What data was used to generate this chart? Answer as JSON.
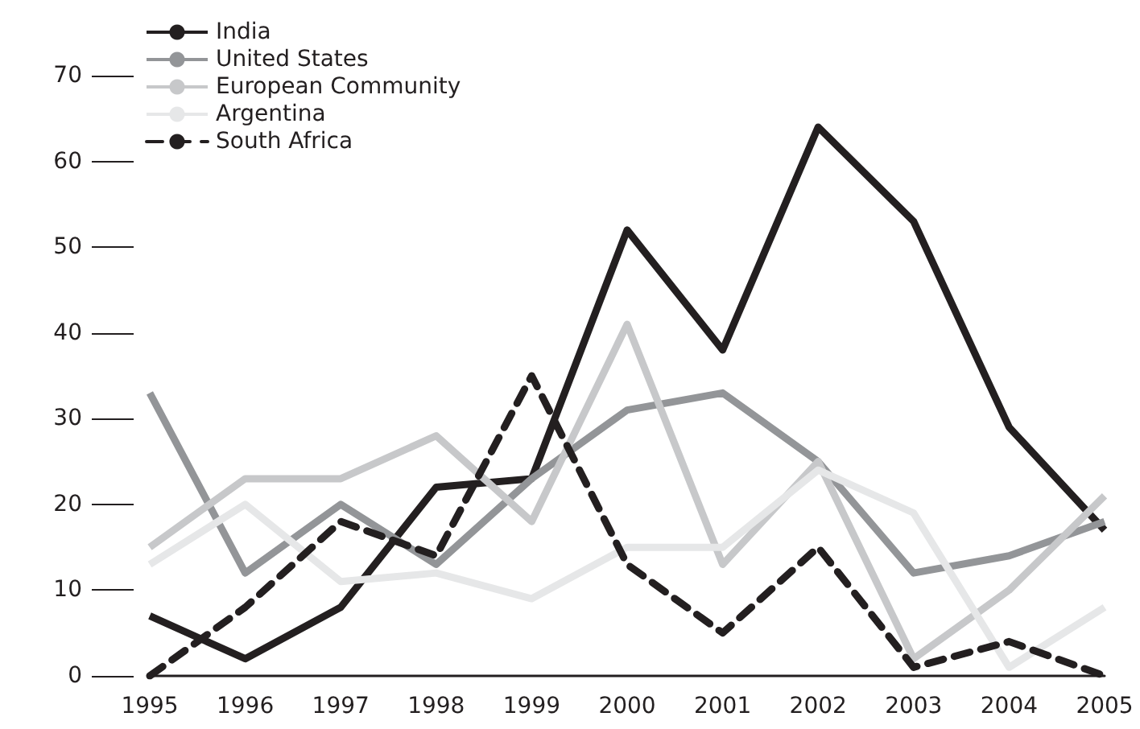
{
  "chart_data": {
    "type": "line",
    "categories": [
      "1995",
      "1996",
      "1997",
      "1998",
      "1999",
      "2000",
      "2001",
      "2002",
      "2003",
      "2004",
      "2005"
    ],
    "series": [
      {
        "name": "India",
        "color": "#231f20",
        "line_style": "solid",
        "values": [
          7,
          2,
          8,
          22,
          23,
          52,
          38,
          64,
          53,
          29,
          17
        ]
      },
      {
        "name": "United States",
        "color": "#939598",
        "line_style": "solid",
        "values": [
          33,
          12,
          20,
          13,
          23,
          31,
          33,
          25,
          12,
          14,
          18
        ]
      },
      {
        "name": "European Community",
        "color": "#c7c8ca",
        "line_style": "solid",
        "values": [
          15,
          23,
          23,
          28,
          18,
          41,
          13,
          25,
          2,
          10,
          21
        ]
      },
      {
        "name": "Argentina",
        "color": "#e6e7e8",
        "line_style": "solid",
        "values": [
          13,
          20,
          11,
          12,
          9,
          15,
          15,
          24,
          19,
          1,
          8
        ]
      },
      {
        "name": "South Africa",
        "color": "#231f20",
        "line_style": "dashed",
        "values": [
          0,
          8,
          18,
          14,
          35,
          13,
          5,
          15,
          1,
          4,
          0
        ]
      }
    ],
    "ylim": [
      0,
      70
    ],
    "yticks": [
      0,
      10,
      20,
      30,
      40,
      50,
      60,
      70
    ],
    "grid": false,
    "legend": "top left",
    "marker": "none"
  }
}
